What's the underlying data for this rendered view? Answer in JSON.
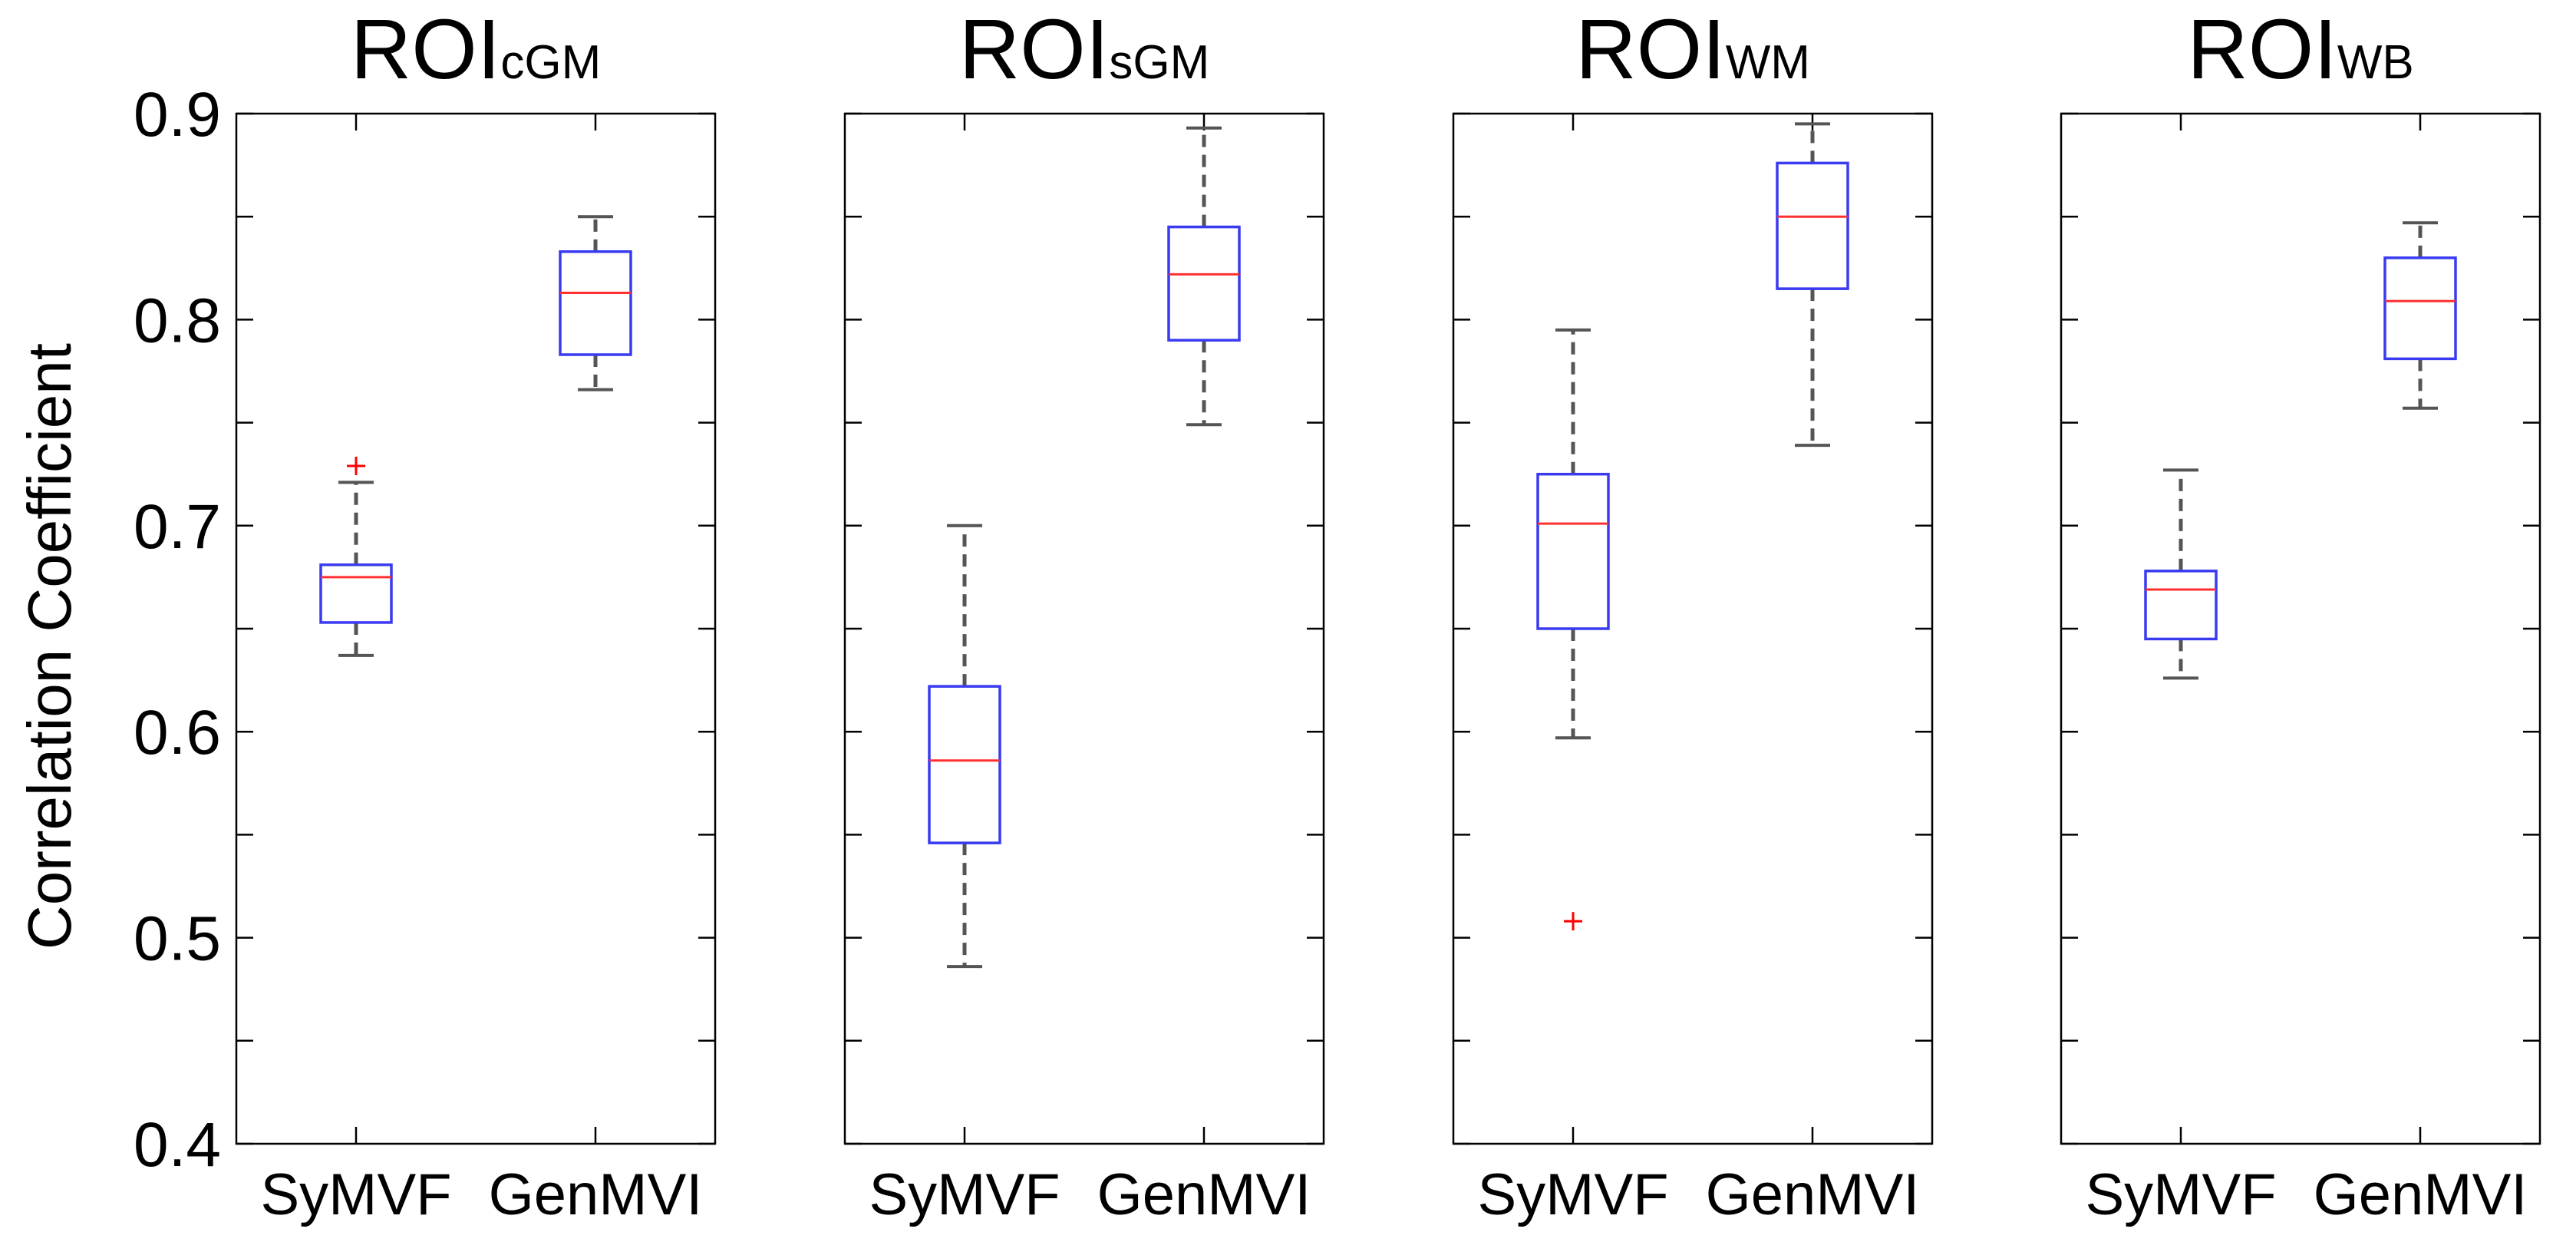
{
  "chart_data": {
    "type": "box",
    "ylabel": "Correlation Coefficient",
    "ylim": [
      0.4,
      0.9
    ],
    "yticks": [
      {
        "value": 0.4,
        "label": "0.4"
      },
      {
        "value": 0.5,
        "label": "0.5"
      },
      {
        "value": 0.6,
        "label": "0.6"
      },
      {
        "value": 0.7,
        "label": "0.7"
      },
      {
        "value": 0.8,
        "label": "0.8"
      },
      {
        "value": 0.9,
        "label": "0.9"
      }
    ],
    "minor_yticks": [
      0.45,
      0.55,
      0.65,
      0.75,
      0.85
    ],
    "categories": [
      "SyMVF",
      "GenMVI"
    ],
    "colors": {
      "box": "#3a3af0",
      "median": "#ff3030",
      "whisker": "#555555",
      "outlier": "#ff0000",
      "axes": "#000000"
    },
    "panels": [
      {
        "title_main": "ROI",
        "title_sub": "cGM",
        "boxes": [
          {
            "category": "SyMVF",
            "q1": 0.653,
            "median": 0.675,
            "q3": 0.681,
            "whisker_low": 0.637,
            "whisker_high": 0.721,
            "outliers": [
              0.729
            ]
          },
          {
            "category": "GenMVI",
            "q1": 0.783,
            "median": 0.813,
            "q3": 0.833,
            "whisker_low": 0.766,
            "whisker_high": 0.85,
            "outliers": []
          }
        ]
      },
      {
        "title_main": "ROI",
        "title_sub": "sGM",
        "boxes": [
          {
            "category": "SyMVF",
            "q1": 0.546,
            "median": 0.586,
            "q3": 0.622,
            "whisker_low": 0.486,
            "whisker_high": 0.7,
            "outliers": []
          },
          {
            "category": "GenMVI",
            "q1": 0.79,
            "median": 0.822,
            "q3": 0.845,
            "whisker_low": 0.749,
            "whisker_high": 0.893,
            "outliers": []
          }
        ]
      },
      {
        "title_main": "ROI",
        "title_sub": "WM",
        "boxes": [
          {
            "category": "SyMVF",
            "q1": 0.65,
            "median": 0.701,
            "q3": 0.725,
            "whisker_low": 0.597,
            "whisker_high": 0.795,
            "outliers": [
              0.508
            ]
          },
          {
            "category": "GenMVI",
            "q1": 0.815,
            "median": 0.85,
            "q3": 0.876,
            "whisker_low": 0.739,
            "whisker_high": 0.895,
            "outliers": []
          }
        ]
      },
      {
        "title_main": "ROI",
        "title_sub": "WB",
        "boxes": [
          {
            "category": "SyMVF",
            "q1": 0.645,
            "median": 0.669,
            "q3": 0.678,
            "whisker_low": 0.626,
            "whisker_high": 0.727,
            "outliers": []
          },
          {
            "category": "GenMVI",
            "q1": 0.781,
            "median": 0.809,
            "q3": 0.83,
            "whisker_low": 0.757,
            "whisker_high": 0.847,
            "outliers": []
          }
        ]
      }
    ]
  }
}
